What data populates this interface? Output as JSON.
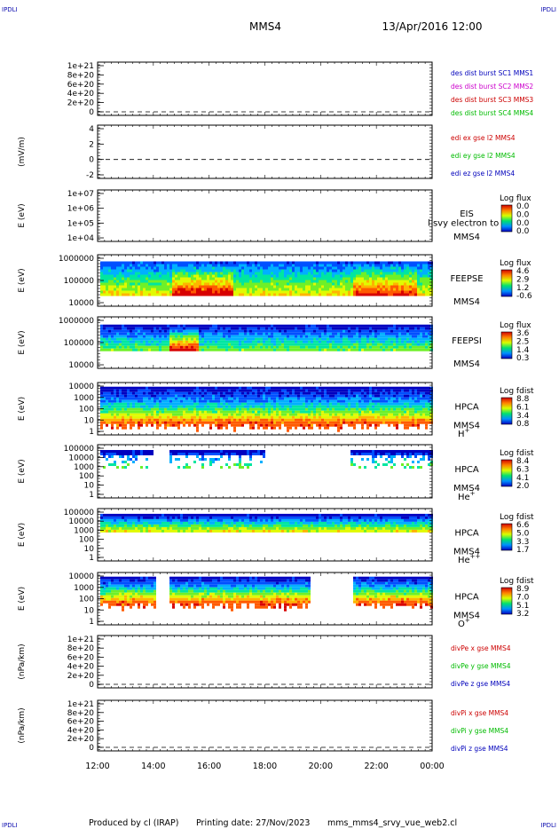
{
  "header": {
    "corner_mark": "IPDLI",
    "spacecraft": "MMS4",
    "datetime": "13/Apr/2016 12:00"
  },
  "footer": {
    "produced_by": "Produced by cl (IRAP)",
    "printing_date": "Printing date: 27/Nov/2023",
    "script_name": "mms_mms4_srvy_vue_web2.cl"
  },
  "colors": {
    "mms1": "#0000bb",
    "mms2": "#cc00cc",
    "mms3": "#cc0000",
    "mms4": "#00bb00",
    "x": "#cc0000",
    "y": "#00bb00",
    "z": "#0000bb"
  },
  "chart_data": {
    "type": "heatmap",
    "x_axis": {
      "range": [
        "12:00",
        "00:00"
      ],
      "tick_labels": [
        "12:00",
        "14:00",
        "16:00",
        "18:00",
        "20:00",
        "22:00",
        "00:00"
      ]
    },
    "panels": [
      {
        "id": "des",
        "kind": "line",
        "ylabel": "",
        "ytick_labels": [
          "1e+21",
          "8e+20",
          "6e+20",
          "4e+20",
          "2e+20",
          "0"
        ],
        "zero_line": true,
        "legend": [
          {
            "text": "des dist burst SC1 MMS1",
            "color_key": "mms1"
          },
          {
            "text": "des dist burst SC2 MMS2",
            "color_key": "mms2"
          },
          {
            "text": "des dist burst SC3 MMS3",
            "color_key": "mms3"
          },
          {
            "text": "des dist burst SC4 MMS4",
            "color_key": "mms4"
          }
        ]
      },
      {
        "id": "edi",
        "kind": "line",
        "ylabel": "(mV/m)",
        "ytick_labels": [
          "4",
          "2",
          "0",
          "-2"
        ],
        "zero_line": true,
        "legend": [
          {
            "text": "edi ex gse l2 MMS4",
            "color_key": "x"
          },
          {
            "text": "edi ey gse l2 MMS4",
            "color_key": "y"
          },
          {
            "text": "edi ez gse l2 MMS4",
            "color_key": "z"
          }
        ]
      },
      {
        "id": "eis",
        "kind": "spectrogram",
        "ylabel": "E (eV)",
        "ytick_labels": [
          "1e+07",
          "1e+06",
          "1e+05",
          "1e+04"
        ],
        "instrument": [
          "EIS",
          "MMS4"
        ],
        "overlay_text": "l svy electron to",
        "colorbar_title": "Log flux",
        "colorbar_labels": [
          "0.0",
          "0.0",
          "0.0",
          "0.0"
        ],
        "band": null
      },
      {
        "id": "feepse",
        "kind": "spectrogram",
        "ylabel": "E (eV)",
        "ytick_labels": [
          "1000000",
          "100000",
          "10000"
        ],
        "instrument": [
          "FEEPSE",
          "MMS4"
        ],
        "colorbar_title": "Log flux",
        "colorbar_labels": [
          "4.6",
          "2.9",
          "1.2",
          "-0.6"
        ],
        "band": {
          "top": 0.13,
          "bottom": 0.8,
          "profile": "feepse"
        }
      },
      {
        "id": "feepsi",
        "kind": "spectrogram",
        "ylabel": "E (eV)",
        "ytick_labels": [
          "1000000",
          "100000",
          "10000"
        ],
        "instrument": [
          "FEEPSI",
          "MMS4"
        ],
        "colorbar_title": "Log flux",
        "colorbar_labels": [
          "3.6",
          "2.5",
          "1.4",
          "0.3"
        ],
        "band": {
          "top": 0.15,
          "bottom": 0.62,
          "profile": "feepsi"
        }
      },
      {
        "id": "hpca_h",
        "kind": "spectrogram",
        "ylabel": "E (eV)",
        "ytick_labels": [
          "10000",
          "1000",
          "100",
          "10",
          "1"
        ],
        "instrument": [
          "HPCA",
          "MMS4"
        ],
        "species": "H",
        "species_sup": "+",
        "colorbar_title": "Log fdist",
        "colorbar_labels": [
          "8.8",
          "6.1",
          "3.4",
          "0.8"
        ],
        "band": {
          "top": 0.08,
          "bottom": 0.75,
          "profile": "hpca_h"
        }
      },
      {
        "id": "hpca_he",
        "kind": "spectrogram",
        "ylabel": "E (eV)",
        "ytick_labels": [
          "100000",
          "10000",
          "1000",
          "100",
          "10",
          "1"
        ],
        "instrument": [
          "HPCA",
          "MMS4"
        ],
        "species": "He",
        "species_sup": "+",
        "colorbar_title": "Log fdist",
        "colorbar_labels": [
          "8.4",
          "6.3",
          "4.1",
          "2.0"
        ],
        "band": {
          "top": 0.1,
          "bottom": 0.45,
          "profile": "hpca_he"
        }
      },
      {
        "id": "hpca_hepp",
        "kind": "spectrogram",
        "ylabel": "E (eV)",
        "ytick_labels": [
          "100000",
          "10000",
          "1000",
          "100",
          "10",
          "1"
        ],
        "instrument": [
          "HPCA",
          "MMS4"
        ],
        "species": "He",
        "species_sup": "++",
        "colorbar_title": "Log fdist",
        "colorbar_labels": [
          "6.6",
          "5.0",
          "3.3",
          "1.7"
        ],
        "band": {
          "top": 0.1,
          "bottom": 0.45,
          "profile": "hpca_hepp"
        }
      },
      {
        "id": "hpca_o",
        "kind": "spectrogram",
        "ylabel": "E (eV)",
        "ytick_labels": [
          "10000",
          "1000",
          "100",
          "10",
          "1"
        ],
        "instrument": [
          "HPCA",
          "MMS4"
        ],
        "species": "O",
        "species_sup": "+",
        "colorbar_title": "Log fdist",
        "colorbar_labels": [
          "8.9",
          "7.0",
          "5.1",
          "3.2"
        ],
        "band": {
          "top": 0.08,
          "bottom": 0.55,
          "profile": "hpca_o"
        }
      },
      {
        "id": "divpe",
        "kind": "line",
        "ylabel": "(nPa/km)",
        "ytick_labels": [
          "1e+21",
          "8e+20",
          "6e+20",
          "4e+20",
          "2e+20",
          "0"
        ],
        "zero_line": true,
        "legend": [
          {
            "text": "divPe x gse MMS4",
            "color_key": "x"
          },
          {
            "text": "divPe y gse MMS4",
            "color_key": "y"
          },
          {
            "text": "divPe z gse MMS4",
            "color_key": "z"
          }
        ]
      },
      {
        "id": "divpi",
        "kind": "line",
        "ylabel": "(nPa/km)",
        "ytick_labels": [
          "1e+21",
          "8e+20",
          "6e+20",
          "4e+20",
          "2e+20",
          "0"
        ],
        "zero_line": true,
        "legend": [
          {
            "text": "divPi x gse MMS4",
            "color_key": "x"
          },
          {
            "text": "divPi y gse MMS4",
            "color_key": "y"
          },
          {
            "text": "divPi z gse MMS4",
            "color_key": "z"
          }
        ]
      }
    ]
  }
}
